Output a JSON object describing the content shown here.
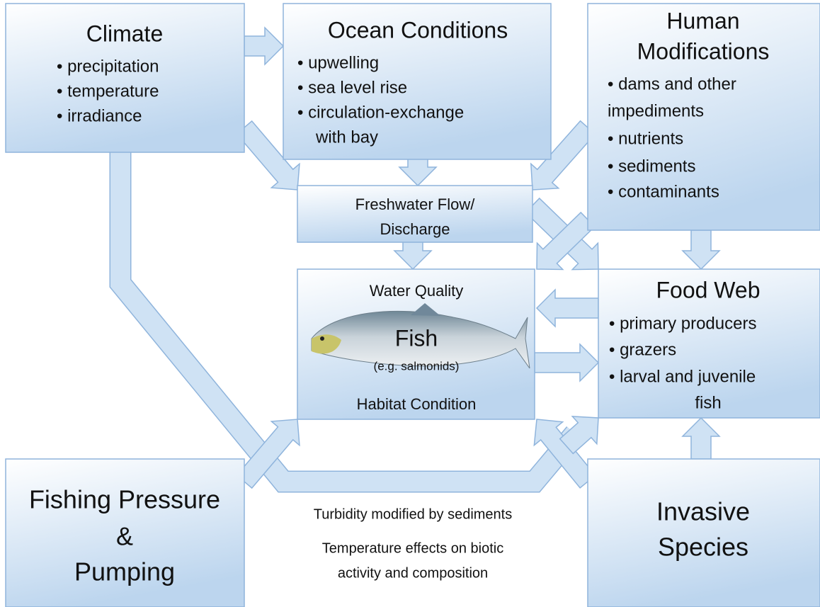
{
  "nodes": [
    {
      "title": [
        "Climate"
      ],
      "items": [
        "• precipitation",
        "• temperature",
        "• irradiance"
      ]
    },
    {
      "title": [
        "Ocean Conditions"
      ],
      "items": [
        "• upwelling",
        "• sea level rise",
        "• circulation-exchange",
        "with bay"
      ]
    },
    {
      "title": [
        "Human",
        "Modifications"
      ],
      "items": [
        "• dams and other",
        "impediments",
        "• nutrients",
        "• sediments",
        "• contaminants"
      ]
    },
    {
      "title": [
        "Freshwater Flow/",
        "Discharge"
      ]
    },
    {
      "top": "Water Quality",
      "title": [
        "Fish"
      ],
      "subtitle": "(e.g. salmonids)",
      "bottom": "Habitat Condition"
    },
    {
      "title": [
        "Food Web"
      ],
      "items": [
        "• primary producers",
        "• grazers",
        "• larval and juvenile",
        "fish"
      ]
    },
    {
      "title": [
        "Fishing Pressure",
        "&",
        "Pumping"
      ]
    },
    {
      "title": [
        "Invasive",
        "Species"
      ]
    }
  ],
  "annotations": [
    "Turbidity modified by sediments",
    "Temperature effects on biotic",
    "activity and composition"
  ]
}
